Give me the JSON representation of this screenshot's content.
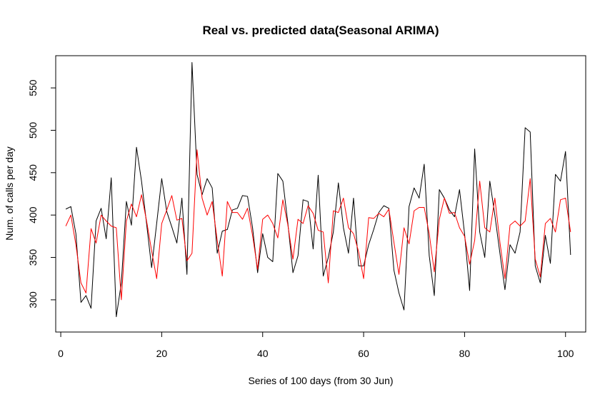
{
  "chart_data": {
    "type": "line",
    "title": "Real vs. predicted data(Seasonal ARIMA)",
    "xlabel": "Series of 100 days (from 30 Jun)",
    "ylabel": "Num. of calls per day",
    "xlim": [
      -1,
      104
    ],
    "ylim": [
      262,
      588
    ],
    "xticks": [
      0,
      20,
      40,
      60,
      80,
      100
    ],
    "yticks": [
      300,
      350,
      400,
      450,
      500,
      550
    ],
    "grid": false,
    "legend": "none",
    "series": [
      {
        "color": "#000000",
        "values": [
          407,
          410,
          378,
          297,
          305,
          290,
          393,
          408,
          372,
          444,
          280,
          320,
          416,
          388,
          480,
          440,
          390,
          338,
          390,
          443,
          404,
          386,
          367,
          420,
          330,
          580,
          448,
          424,
          443,
          432,
          355,
          381,
          383,
          406,
          408,
          423,
          422,
          385,
          332,
          378,
          350,
          345,
          449,
          440,
          390,
          332,
          352,
          418,
          416,
          360,
          447,
          328,
          350,
          380,
          438,
          385,
          355,
          420,
          340,
          340,
          365,
          383,
          403,
          411,
          408,
          335,
          308,
          288,
          410,
          432,
          420,
          460,
          352,
          305,
          430,
          420,
          406,
          398,
          430,
          378,
          311,
          478,
          380,
          350,
          440,
          400,
          355,
          312,
          365,
          355,
          380,
          503,
          498,
          340,
          320,
          376,
          343,
          448,
          440,
          475,
          353
        ]
      },
      {
        "color": "#ff0000",
        "values": [
          387,
          400,
          365,
          320,
          308,
          384,
          367,
          400,
          393,
          387,
          385,
          300,
          393,
          413,
          398,
          424,
          393,
          358,
          325,
          390,
          406,
          423,
          394,
          396,
          346,
          355,
          477,
          420,
          400,
          416,
          370,
          328,
          416,
          403,
          403,
          395,
          408,
          376,
          336,
          395,
          400,
          390,
          373,
          418,
          388,
          348,
          395,
          390,
          411,
          402,
          382,
          380,
          320,
          405,
          403,
          420,
          385,
          378,
          357,
          325,
          397,
          396,
          402,
          398,
          407,
          368,
          330,
          385,
          366,
          405,
          409,
          409,
          378,
          333,
          395,
          420,
          402,
          403,
          385,
          375,
          342,
          370,
          440,
          385,
          380,
          420,
          368,
          325,
          388,
          393,
          387,
          393,
          443,
          348,
          327,
          390,
          396,
          380,
          418,
          420,
          380
        ]
      }
    ]
  }
}
